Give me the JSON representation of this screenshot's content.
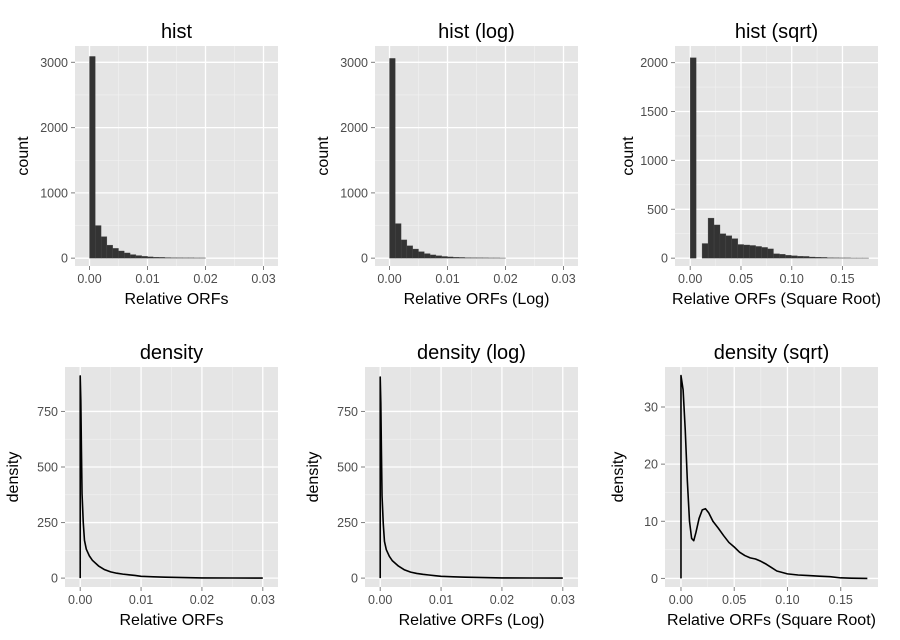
{
  "chart_data": [
    {
      "type": "bar",
      "title": "hist",
      "xlabel": "Relative ORFs",
      "ylabel": "count",
      "xlim": [
        -0.0025,
        0.0325
      ],
      "ylim": [
        -120,
        3250
      ],
      "xticks": [
        0.0,
        0.01,
        0.02,
        0.03
      ],
      "xtick_labels": [
        "0.00",
        "0.01",
        "0.02",
        "0.03"
      ],
      "yticks": [
        0,
        1000,
        2000,
        3000
      ],
      "ytick_labels": [
        "0",
        "1000",
        "2000",
        "3000"
      ],
      "grid": true,
      "bar_width": 0.001,
      "x": [
        0.0005,
        0.0015,
        0.0025,
        0.0035,
        0.0045,
        0.0055,
        0.0065,
        0.0075,
        0.0085,
        0.0095,
        0.0105,
        0.0115,
        0.0125,
        0.0135,
        0.0145,
        0.0155,
        0.0165,
        0.0175,
        0.0185,
        0.0195
      ],
      "values": [
        3090,
        500,
        330,
        200,
        150,
        110,
        80,
        55,
        40,
        28,
        20,
        15,
        12,
        9,
        7,
        6,
        5,
        5,
        4,
        4
      ]
    },
    {
      "type": "bar",
      "title": "hist (log)",
      "xlabel": "Relative ORFs (Log)",
      "ylabel": "count",
      "xlim": [
        -0.0025,
        0.0325
      ],
      "ylim": [
        -120,
        3250
      ],
      "xticks": [
        0.0,
        0.01,
        0.02,
        0.03
      ],
      "xtick_labels": [
        "0.00",
        "0.01",
        "0.02",
        "0.03"
      ],
      "yticks": [
        0,
        1000,
        2000,
        3000
      ],
      "ytick_labels": [
        "0",
        "1000",
        "2000",
        "3000"
      ],
      "grid": true,
      "bar_width": 0.001,
      "x": [
        0.0005,
        0.0015,
        0.0025,
        0.0035,
        0.0045,
        0.0055,
        0.0065,
        0.0075,
        0.0085,
        0.0095,
        0.0105,
        0.0115,
        0.0125,
        0.0135,
        0.0145,
        0.0155,
        0.0165,
        0.0175,
        0.0185,
        0.0195
      ],
      "values": [
        3060,
        530,
        280,
        190,
        140,
        100,
        70,
        50,
        38,
        26,
        19,
        14,
        11,
        8,
        7,
        6,
        5,
        4,
        4,
        3
      ]
    },
    {
      "type": "bar",
      "title": "hist (sqrt)",
      "xlabel": "Relative ORFs (Square Root)",
      "ylabel": "count",
      "xlim": [
        -0.015,
        0.185
      ],
      "ylim": [
        -80,
        2170
      ],
      "xticks": [
        0.0,
        0.05,
        0.1,
        0.15
      ],
      "xtick_labels": [
        "0.00",
        "0.05",
        "0.10",
        "0.15"
      ],
      "yticks": [
        0,
        500,
        1000,
        1500,
        2000
      ],
      "ytick_labels": [
        "0",
        "500",
        "1000",
        "1500",
        "2000"
      ],
      "grid": true,
      "bar_width": 0.00586,
      "x": [
        0.0029,
        0.0088,
        0.0146,
        0.0205,
        0.0264,
        0.0322,
        0.0381,
        0.044,
        0.0498,
        0.0557,
        0.0615,
        0.0674,
        0.0733,
        0.0791,
        0.085,
        0.0908,
        0.0967,
        0.1026,
        0.1084,
        0.1143,
        0.1202,
        0.126,
        0.1319,
        0.1377,
        0.1436,
        0.1495,
        0.1553,
        0.1612,
        0.167,
        0.1729
      ],
      "values": [
        2050,
        0,
        150,
        410,
        340,
        250,
        230,
        200,
        140,
        135,
        130,
        120,
        110,
        95,
        45,
        40,
        30,
        25,
        20,
        18,
        12,
        10,
        8,
        5,
        4,
        3,
        3,
        2,
        2,
        2
      ]
    },
    {
      "type": "line",
      "title": "density",
      "xlabel": "Relative ORFs",
      "ylabel": "density",
      "xlim": [
        -0.0025,
        0.0325
      ],
      "ylim": [
        -40,
        950
      ],
      "xticks": [
        0.0,
        0.01,
        0.02,
        0.03
      ],
      "xtick_labels": [
        "0.00",
        "0.01",
        "0.02",
        "0.03"
      ],
      "yticks": [
        0,
        250,
        500,
        750
      ],
      "ytick_labels": [
        "0",
        "250",
        "500",
        "750"
      ],
      "grid": true,
      "x": [
        0.0,
        0.0,
        0.0001,
        0.0002,
        0.0003,
        0.0005,
        0.0007,
        0.001,
        0.0015,
        0.002,
        0.003,
        0.004,
        0.005,
        0.006,
        0.007,
        0.008,
        0.009,
        0.01,
        0.012,
        0.014,
        0.016,
        0.018,
        0.02,
        0.025,
        0.03
      ],
      "values": [
        0,
        910,
        800,
        580,
        380,
        250,
        170,
        130,
        100,
        80,
        55,
        38,
        28,
        22,
        18,
        15,
        12,
        8,
        6,
        4,
        3,
        2,
        1,
        0.5,
        0
      ]
    },
    {
      "type": "line",
      "title": "density (log)",
      "xlabel": "Relative ORFs (Log)",
      "ylabel": "density",
      "xlim": [
        -0.0025,
        0.0325
      ],
      "ylim": [
        -40,
        950
      ],
      "xticks": [
        0.0,
        0.01,
        0.02,
        0.03
      ],
      "xtick_labels": [
        "0.00",
        "0.01",
        "0.02",
        "0.03"
      ],
      "yticks": [
        0,
        250,
        500,
        750
      ],
      "ytick_labels": [
        "0",
        "250",
        "500",
        "750"
      ],
      "grid": true,
      "x": [
        0.0,
        0.0,
        0.0001,
        0.0002,
        0.0003,
        0.0005,
        0.0007,
        0.001,
        0.0015,
        0.002,
        0.003,
        0.004,
        0.005,
        0.006,
        0.007,
        0.008,
        0.009,
        0.01,
        0.012,
        0.014,
        0.016,
        0.018,
        0.02,
        0.025,
        0.03
      ],
      "values": [
        0,
        905,
        790,
        570,
        370,
        245,
        165,
        128,
        98,
        78,
        54,
        37,
        27,
        21,
        17,
        14,
        11,
        8,
        6,
        4,
        3,
        2,
        1,
        0.5,
        0
      ]
    },
    {
      "type": "line",
      "title": "density (sqrt)",
      "xlabel": "Relative ORFs (Square Root)",
      "ylabel": "density",
      "xlim": [
        -0.015,
        0.185
      ],
      "ylim": [
        -1.5,
        37
      ],
      "xticks": [
        0.0,
        0.05,
        0.1,
        0.15
      ],
      "xtick_labels": [
        "0.00",
        "0.05",
        "0.10",
        "0.15"
      ],
      "yticks": [
        0,
        10,
        20,
        30
      ],
      "ytick_labels": [
        "0",
        "10",
        "20",
        "30"
      ],
      "grid": true,
      "x": [
        0.0,
        0.0,
        0.002,
        0.004,
        0.006,
        0.008,
        0.01,
        0.012,
        0.014,
        0.017,
        0.02,
        0.023,
        0.026,
        0.03,
        0.035,
        0.04,
        0.045,
        0.05,
        0.055,
        0.06,
        0.065,
        0.07,
        0.075,
        0.08,
        0.085,
        0.09,
        0.1,
        0.11,
        0.12,
        0.13,
        0.14,
        0.15,
        0.16,
        0.175
      ],
      "values": [
        0,
        35.5,
        33,
        26,
        17,
        10,
        7,
        6.6,
        8,
        10.5,
        12,
        12.2,
        11.5,
        10,
        8.8,
        7.5,
        6.3,
        5.5,
        4.6,
        4,
        3.6,
        3.4,
        3,
        2.5,
        1.9,
        1.3,
        0.8,
        0.6,
        0.5,
        0.4,
        0.3,
        0.1,
        0.05,
        0
      ]
    }
  ]
}
